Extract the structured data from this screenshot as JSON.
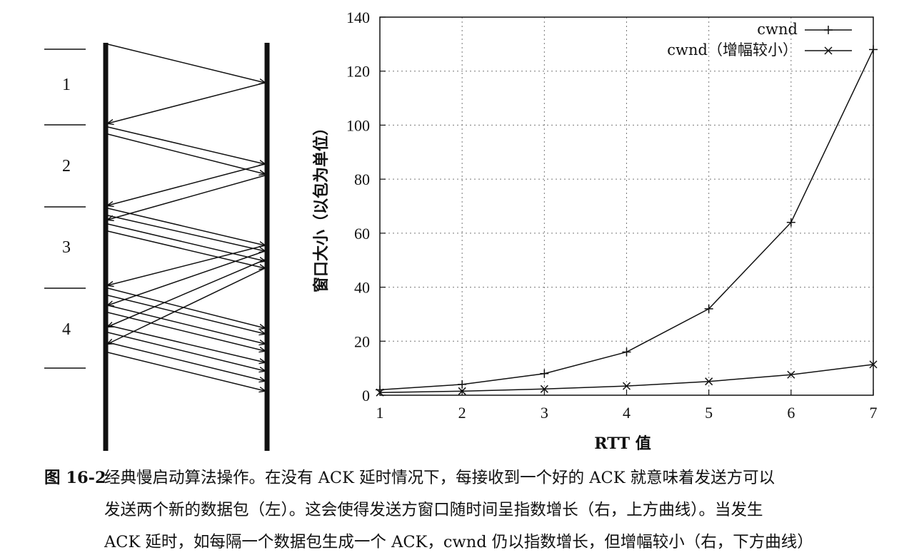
{
  "diagram": {
    "rounds": [
      "1",
      "2",
      "3",
      "4"
    ]
  },
  "chart_data": {
    "type": "line",
    "x": [
      1,
      2,
      3,
      4,
      5,
      6,
      7
    ],
    "series": [
      {
        "name": "cwnd",
        "values": [
          2,
          4,
          8,
          16,
          32,
          64,
          128
        ],
        "marker": "plus"
      },
      {
        "name": "cwnd（增幅较小）",
        "values": [
          1,
          1.5,
          2.3,
          3.4,
          5.1,
          7.6,
          11.4
        ],
        "marker": "cross"
      }
    ],
    "xlabel": "RTT 值",
    "ylabel": "窗口大小（以包为单位）",
    "xlim": [
      1,
      7
    ],
    "ylim": [
      0,
      140
    ],
    "xticks": [
      "1",
      "2",
      "3",
      "4",
      "5",
      "6",
      "7"
    ],
    "yticks": [
      "0",
      "20",
      "40",
      "60",
      "80",
      "100",
      "120",
      "140"
    ],
    "grid": true,
    "legend_position": "top-right"
  },
  "caption": {
    "label": "图 16-2",
    "lines": [
      "经典慢启动算法操作。在没有 ACK 延时情况下，每接收到一个好的 ACK 就意味着发送方可以",
      "发送两个新的数据包（左）。这会使得发送方窗口随时间呈指数增长（右，上方曲线）。当发生",
      "ACK 延时，如每隔一个数据包生成一个 ACK，cwnd 仍以指数增长，但增幅较小（右，下方曲线）"
    ]
  },
  "colors": {
    "ink": "#111111",
    "grid": "#777777"
  }
}
